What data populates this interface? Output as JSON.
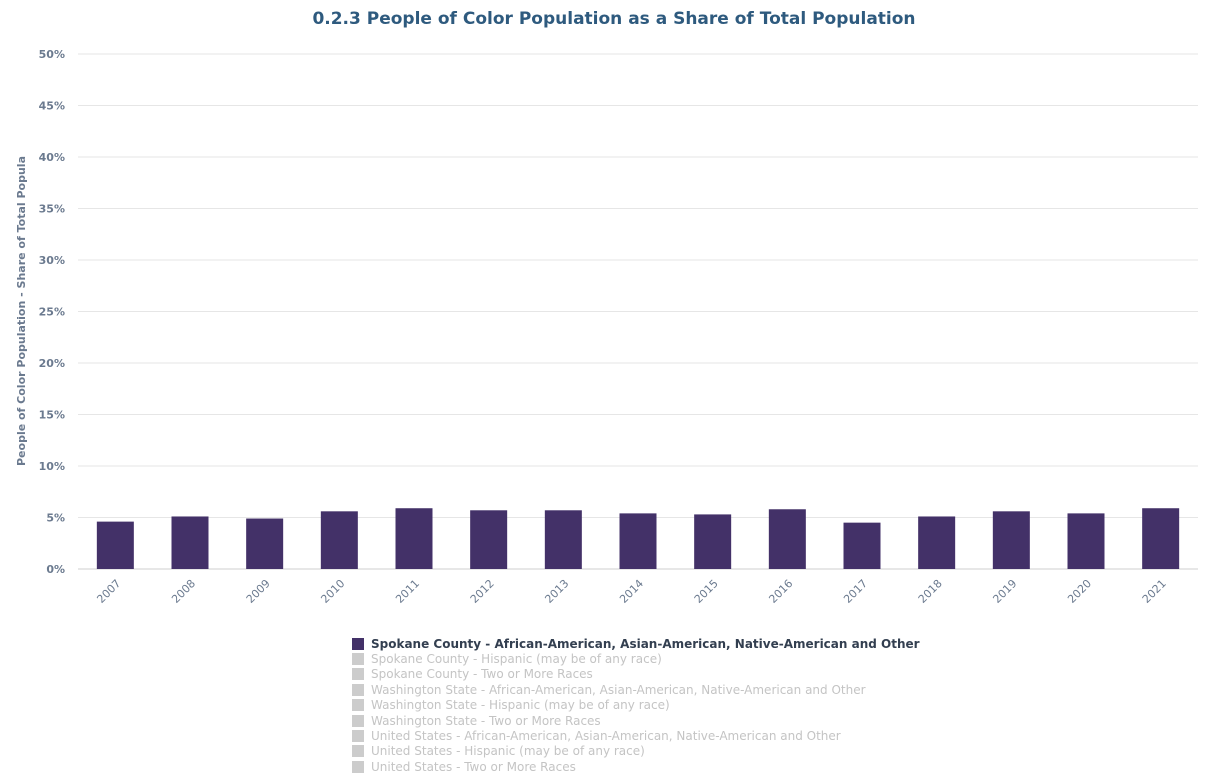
{
  "chart_data": {
    "type": "bar",
    "title": "0.2.3 People of Color Population as a Share of Total Population",
    "ylabel": "People of Color Population - Share of Total Popula",
    "xlabel": "",
    "ylim": [
      0,
      50
    ],
    "yticks": [
      "0%",
      "5%",
      "10%",
      "15%",
      "20%",
      "25%",
      "30%",
      "35%",
      "40%",
      "45%",
      "50%"
    ],
    "categories": [
      "2007",
      "2008",
      "2009",
      "2010",
      "2011",
      "2012",
      "2013",
      "2014",
      "2015",
      "2016",
      "2017",
      "2018",
      "2019",
      "2020",
      "2021"
    ],
    "series": [
      {
        "name": "Spokane County - African-American, Asian-American, Native-American and Other",
        "visible": true,
        "color": "#433168",
        "values": [
          4.6,
          5.1,
          4.9,
          5.6,
          5.9,
          5.7,
          5.7,
          5.4,
          5.3,
          5.8,
          4.5,
          5.1,
          5.6,
          5.4,
          5.9
        ]
      },
      {
        "name": "Spokane County - Hispanic (may be of any race)",
        "visible": false,
        "color": "#cccccc"
      },
      {
        "name": "Spokane County - Two or More Races",
        "visible": false,
        "color": "#cccccc"
      },
      {
        "name": "Washington State - African-American, Asian-American, Native-American and Other",
        "visible": false,
        "color": "#cccccc"
      },
      {
        "name": "Washington State - Hispanic (may be of any race)",
        "visible": false,
        "color": "#cccccc"
      },
      {
        "name": "Washington State - Two or More Races",
        "visible": false,
        "color": "#cccccc"
      },
      {
        "name": "United States - African-American, Asian-American, Native-American and Other",
        "visible": false,
        "color": "#cccccc"
      },
      {
        "name": "United States - Hispanic (may be of any race)",
        "visible": false,
        "color": "#cccccc"
      },
      {
        "name": "United States - Two or More Races",
        "visible": false,
        "color": "#cccccc"
      }
    ],
    "grid": true,
    "legend_position": "bottom-center"
  },
  "colors": {
    "title": "#2e5a7e",
    "axis_text": "#6b7a8f",
    "grid": "#e6e6e6",
    "legend_active": "#333f50",
    "legend_inactive": "#c4c4c4"
  }
}
